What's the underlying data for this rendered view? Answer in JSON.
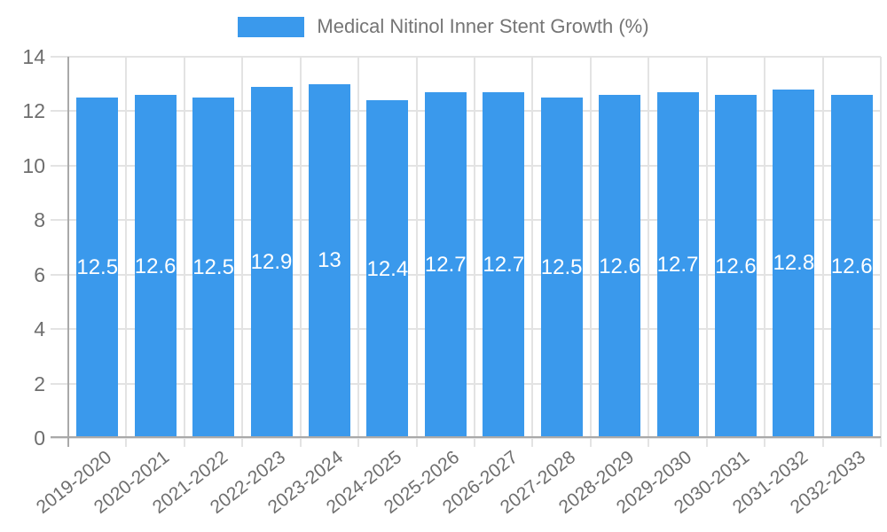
{
  "chart_data": {
    "type": "bar",
    "title": "Medical Nitinol Inner Stent Growth (%)",
    "legend": {
      "label": "Medical Nitinol Inner Stent Growth (%)",
      "position": "top"
    },
    "categories": [
      "2019-2020",
      "2020-2021",
      "2021-2022",
      "2022-2023",
      "2023-2024",
      "2024-2025",
      "2025-2026",
      "2026-2027",
      "2027-2028",
      "2028-2029",
      "2029-2030",
      "2030-2031",
      "2031-2032",
      "2032-2033"
    ],
    "values": [
      12.5,
      12.6,
      12.5,
      12.9,
      13,
      12.4,
      12.7,
      12.7,
      12.5,
      12.6,
      12.7,
      12.6,
      12.8,
      12.6
    ],
    "bar_labels": [
      "12.5",
      "12.6",
      "12.5",
      "12.9",
      "13",
      "12.4",
      "12.7",
      "12.7",
      "12.5",
      "12.6",
      "12.7",
      "12.6",
      "12.8",
      "12.6"
    ],
    "xlabel": "",
    "ylabel": "",
    "ylim": [
      0,
      14
    ],
    "yticks": [
      0,
      2,
      4,
      6,
      8,
      10,
      12,
      14
    ],
    "grid": true,
    "colors": {
      "bar": "#3A99EC",
      "grid": "#E3E3E3",
      "axis": "#A9A9A9",
      "tick_text": "#6E6E6E",
      "legend_text": "#757575",
      "bar_label_text": "#FFFFFF"
    }
  }
}
